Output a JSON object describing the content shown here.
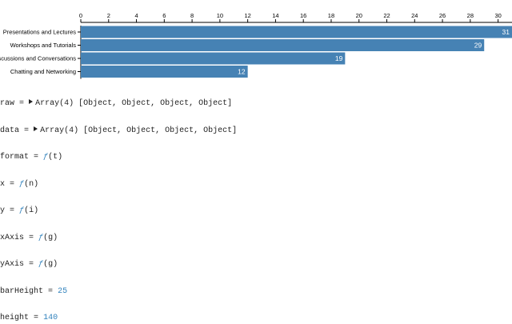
{
  "chart_data": {
    "type": "bar",
    "orientation": "horizontal",
    "categories": [
      "Presentations and Lectures",
      "Workshops and Tutorials",
      "Discussions and Conversations",
      "Chatting and Networking"
    ],
    "values": [
      31,
      29,
      19,
      12
    ],
    "color": "#4682b4",
    "xlim": [
      0,
      31
    ],
    "xticks": [
      0,
      2,
      4,
      6,
      8,
      10,
      12,
      14,
      16,
      18,
      20,
      22,
      24,
      26,
      28,
      30
    ]
  },
  "notebook": {
    "assign": "=",
    "cells": [
      {
        "name": "raw",
        "kind": "Array(4)",
        "preview": "[Object, Object, Object, Object]"
      },
      {
        "name": "data",
        "kind": "Array(4)",
        "preview": "[Object, Object, Object, Object]"
      },
      {
        "name": "format",
        "fn": "ƒ",
        "args": "(t)"
      },
      {
        "name": "x",
        "fn": "ƒ",
        "args": "(n)"
      },
      {
        "name": "y",
        "fn": "ƒ",
        "args": "(i)"
      },
      {
        "name": "xAxis",
        "fn": "ƒ",
        "args": "(g)"
      },
      {
        "name": "yAxis",
        "fn": "ƒ",
        "args": "(g)"
      },
      {
        "name": "barHeight",
        "value": 25
      },
      {
        "name": "height",
        "value": 140
      }
    ]
  }
}
